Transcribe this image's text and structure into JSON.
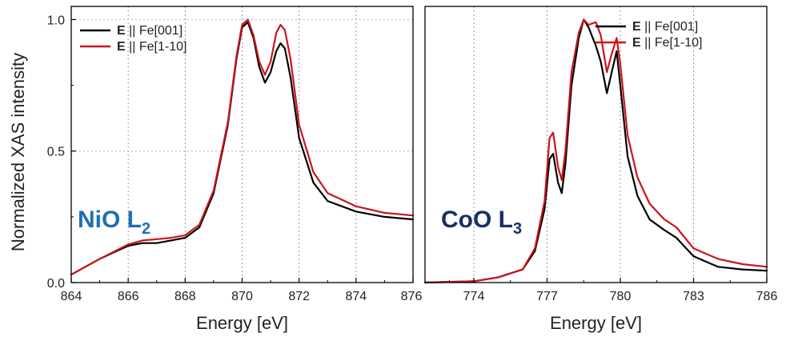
{
  "ylabel": "Normalized XAS intensity",
  "chart_data": [
    {
      "type": "line",
      "panel_label": "NiO L",
      "panel_label_sub": "2",
      "panel_label_color": "#1f6fb4",
      "xlabel": "Energy [eV]",
      "ylabel": "Normalized XAS intensity",
      "xlim": [
        864,
        876
      ],
      "ylim": [
        0.0,
        1.05
      ],
      "xticks": [
        "864",
        "866",
        "868",
        "870",
        "872",
        "874",
        "876"
      ],
      "yticks": [
        "0.0",
        "0.5",
        "1.0"
      ],
      "ytick_values": [
        0.0,
        0.5,
        1.0
      ],
      "grid": true,
      "legend_position": "top-left",
      "series": [
        {
          "name_bold": "E",
          "name_rest": " || Fe[001]",
          "color": "#000000",
          "x": [
            864,
            865,
            866,
            866.5,
            867,
            867.5,
            868,
            868.5,
            869,
            869.5,
            869.8,
            870.0,
            870.2,
            870.4,
            870.6,
            870.8,
            871.0,
            871.2,
            871.35,
            871.5,
            871.7,
            872.0,
            872.5,
            873,
            874,
            875,
            876
          ],
          "y": [
            0.03,
            0.09,
            0.14,
            0.15,
            0.15,
            0.16,
            0.17,
            0.21,
            0.34,
            0.6,
            0.85,
            0.97,
            0.99,
            0.93,
            0.82,
            0.76,
            0.8,
            0.88,
            0.91,
            0.89,
            0.78,
            0.55,
            0.38,
            0.31,
            0.27,
            0.25,
            0.24
          ]
        },
        {
          "name_bold": "E",
          "name_rest": " || Fe[1-10]",
          "color": "#c8161d",
          "x": [
            864,
            865,
            866,
            866.5,
            867,
            867.5,
            868,
            868.5,
            869,
            869.5,
            869.8,
            870.0,
            870.2,
            870.4,
            870.6,
            870.8,
            871.0,
            871.2,
            871.35,
            871.5,
            871.7,
            872.0,
            872.5,
            873,
            874,
            875,
            876
          ],
          "y": [
            0.03,
            0.09,
            0.145,
            0.16,
            0.165,
            0.17,
            0.18,
            0.22,
            0.35,
            0.61,
            0.86,
            0.98,
            1.0,
            0.94,
            0.84,
            0.79,
            0.84,
            0.95,
            0.98,
            0.96,
            0.85,
            0.6,
            0.42,
            0.34,
            0.29,
            0.265,
            0.255
          ]
        }
      ]
    },
    {
      "type": "line",
      "panel_label": "CoO L",
      "panel_label_sub": "3",
      "panel_label_color": "#1a2f66",
      "xlabel": "Energy [eV]",
      "xlim": [
        772,
        786
      ],
      "ylim": [
        0.0,
        1.05
      ],
      "xticks": [
        "774",
        "777",
        "780",
        "783",
        "786"
      ],
      "xtick_values": [
        774,
        777,
        780,
        783,
        786
      ],
      "grid": true,
      "legend_position": "top-right",
      "series": [
        {
          "name_bold": "E",
          "name_rest": " || Fe[001]",
          "color": "#000000",
          "x": [
            772,
            774,
            775,
            776,
            776.5,
            776.9,
            777.1,
            777.25,
            777.45,
            777.6,
            777.75,
            778.0,
            778.3,
            778.5,
            778.7,
            779.0,
            779.2,
            779.45,
            779.65,
            779.85,
            780.0,
            780.3,
            780.7,
            781.2,
            781.8,
            782.3,
            783,
            784,
            785,
            786
          ],
          "y": [
            0.0,
            0.005,
            0.02,
            0.05,
            0.12,
            0.28,
            0.47,
            0.49,
            0.38,
            0.34,
            0.45,
            0.75,
            0.93,
            1.0,
            0.97,
            0.9,
            0.84,
            0.72,
            0.8,
            0.88,
            0.75,
            0.48,
            0.33,
            0.24,
            0.2,
            0.17,
            0.1,
            0.06,
            0.05,
            0.045
          ]
        },
        {
          "name_bold": "E",
          "name_rest": " || Fe[1-10]",
          "color": "#c8161d",
          "x": [
            772,
            774,
            775,
            776,
            776.5,
            776.9,
            777.1,
            777.25,
            777.45,
            777.6,
            777.75,
            778.0,
            778.3,
            778.5,
            778.7,
            779.0,
            779.2,
            779.45,
            779.65,
            779.85,
            780.0,
            780.3,
            780.7,
            781.2,
            781.8,
            782.3,
            783,
            784,
            785,
            786
          ],
          "y": [
            0.0,
            0.005,
            0.02,
            0.05,
            0.13,
            0.31,
            0.55,
            0.57,
            0.44,
            0.39,
            0.5,
            0.8,
            0.95,
            1.0,
            0.98,
            0.99,
            0.94,
            0.8,
            0.87,
            0.93,
            0.83,
            0.56,
            0.4,
            0.3,
            0.24,
            0.21,
            0.13,
            0.09,
            0.07,
            0.06
          ]
        }
      ]
    }
  ]
}
